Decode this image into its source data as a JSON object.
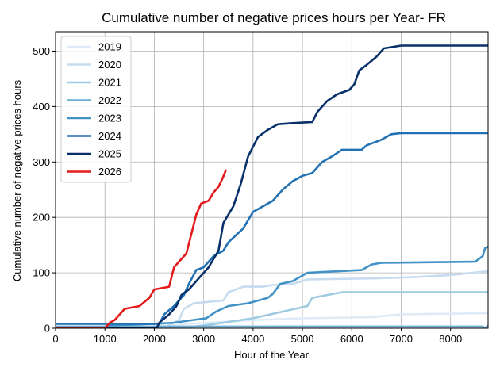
{
  "chart_data": {
    "type": "line",
    "title": "Cumulative number of negative prices hours per Year- FR",
    "xlabel": "Hour of the Year",
    "ylabel": "Cumulative number of negative prices hours",
    "xlim": [
      0,
      8760
    ],
    "ylim": [
      0,
      535
    ],
    "xticks": [
      0,
      1000,
      2000,
      3000,
      4000,
      5000,
      6000,
      7000,
      8000
    ],
    "yticks": [
      0,
      100,
      200,
      300,
      400,
      500
    ],
    "grid": true,
    "legend_position": "top-left",
    "series": [
      {
        "name": "2019",
        "color": "#deebf7",
        "points": [
          [
            0,
            0
          ],
          [
            1500,
            0
          ],
          [
            2200,
            5
          ],
          [
            3100,
            10
          ],
          [
            4100,
            15
          ],
          [
            5000,
            18
          ],
          [
            6400,
            20
          ],
          [
            7000,
            25
          ],
          [
            8760,
            27
          ]
        ]
      },
      {
        "name": "2020",
        "color": "#c6dbef",
        "points": [
          [
            0,
            0
          ],
          [
            2200,
            0
          ],
          [
            2500,
            15
          ],
          [
            2600,
            35
          ],
          [
            2800,
            45
          ],
          [
            3400,
            50
          ],
          [
            3500,
            65
          ],
          [
            3800,
            75
          ],
          [
            4200,
            75
          ],
          [
            4400,
            78
          ],
          [
            4800,
            80
          ],
          [
            5100,
            88
          ],
          [
            6500,
            90
          ],
          [
            7200,
            92
          ],
          [
            8000,
            96
          ],
          [
            8760,
            103
          ]
        ]
      },
      {
        "name": "2021",
        "color": "#9ecae1",
        "points": [
          [
            0,
            0
          ],
          [
            2500,
            0
          ],
          [
            3000,
            5
          ],
          [
            3400,
            10
          ],
          [
            4000,
            18
          ],
          [
            4600,
            30
          ],
          [
            5100,
            40
          ],
          [
            5200,
            55
          ],
          [
            5500,
            60
          ],
          [
            5800,
            65
          ],
          [
            8760,
            65
          ]
        ]
      },
      {
        "name": "2022",
        "color": "#6baed6",
        "points": [
          [
            0,
            3
          ],
          [
            8650,
            3
          ],
          [
            8700,
            0
          ],
          [
            8760,
            5
          ]
        ]
      },
      {
        "name": "2023",
        "color": "#4292c6",
        "points": [
          [
            0,
            0
          ],
          [
            1000,
            0
          ],
          [
            1100,
            5
          ],
          [
            2000,
            8
          ],
          [
            2400,
            10
          ],
          [
            2800,
            15
          ],
          [
            3050,
            18
          ],
          [
            3250,
            30
          ],
          [
            3500,
            40
          ],
          [
            3900,
            45
          ],
          [
            4300,
            55
          ],
          [
            4400,
            62
          ],
          [
            4550,
            80
          ],
          [
            4800,
            85
          ],
          [
            5000,
            95
          ],
          [
            5100,
            100
          ],
          [
            6200,
            105
          ],
          [
            6400,
            115
          ],
          [
            6600,
            118
          ],
          [
            8500,
            120
          ],
          [
            8650,
            130
          ],
          [
            8700,
            145
          ],
          [
            8760,
            147
          ]
        ]
      },
      {
        "name": "2024",
        "color": "#2171b5",
        "points": [
          [
            0,
            8
          ],
          [
            2100,
            8
          ],
          [
            2200,
            25
          ],
          [
            2400,
            40
          ],
          [
            2600,
            60
          ],
          [
            2700,
            80
          ],
          [
            2850,
            105
          ],
          [
            3000,
            110
          ],
          [
            3200,
            130
          ],
          [
            3400,
            140
          ],
          [
            3500,
            155
          ],
          [
            3800,
            180
          ],
          [
            4000,
            210
          ],
          [
            4200,
            220
          ],
          [
            4400,
            230
          ],
          [
            4600,
            250
          ],
          [
            4800,
            265
          ],
          [
            5000,
            275
          ],
          [
            5200,
            280
          ],
          [
            5400,
            300
          ],
          [
            5600,
            310
          ],
          [
            5800,
            322
          ],
          [
            6200,
            322
          ],
          [
            6300,
            330
          ],
          [
            6600,
            340
          ],
          [
            6800,
            350
          ],
          [
            7000,
            352
          ],
          [
            8760,
            352
          ]
        ]
      },
      {
        "name": "2025",
        "color": "#08306b",
        "points": [
          [
            0,
            0
          ],
          [
            2050,
            0
          ],
          [
            2100,
            10
          ],
          [
            2300,
            25
          ],
          [
            2450,
            40
          ],
          [
            2550,
            60
          ],
          [
            2700,
            70
          ],
          [
            2900,
            90
          ],
          [
            3100,
            110
          ],
          [
            3300,
            140
          ],
          [
            3400,
            190
          ],
          [
            3600,
            220
          ],
          [
            3750,
            260
          ],
          [
            3900,
            310
          ],
          [
            4100,
            345
          ],
          [
            4300,
            358
          ],
          [
            4500,
            368
          ],
          [
            4800,
            370
          ],
          [
            5200,
            372
          ],
          [
            5300,
            390
          ],
          [
            5500,
            410
          ],
          [
            5700,
            422
          ],
          [
            5950,
            430
          ],
          [
            6050,
            440
          ],
          [
            6150,
            465
          ],
          [
            6300,
            475
          ],
          [
            6500,
            490
          ],
          [
            6650,
            505
          ],
          [
            7000,
            510
          ],
          [
            8760,
            510
          ]
        ]
      },
      {
        "name": "2026",
        "color": "#e31a1c",
        "points": [
          [
            0,
            0
          ],
          [
            1000,
            0
          ],
          [
            1100,
            10
          ],
          [
            1200,
            15
          ],
          [
            1400,
            35
          ],
          [
            1700,
            40
          ],
          [
            1900,
            55
          ],
          [
            2000,
            70
          ],
          [
            2300,
            75
          ],
          [
            2400,
            110
          ],
          [
            2500,
            120
          ],
          [
            2650,
            135
          ],
          [
            2750,
            170
          ],
          [
            2850,
            205
          ],
          [
            2950,
            225
          ],
          [
            3100,
            230
          ],
          [
            3200,
            245
          ],
          [
            3300,
            255
          ],
          [
            3380,
            270
          ],
          [
            3450,
            285
          ]
        ]
      }
    ]
  }
}
